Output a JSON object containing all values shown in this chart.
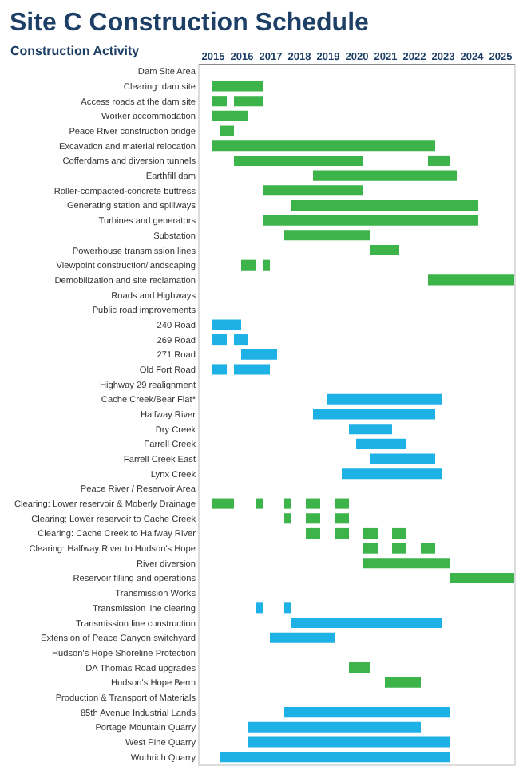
{
  "chart_data": {
    "type": "bar",
    "orientation": "horizontal",
    "title": "Site C Construction Schedule",
    "ylabel": "Construction Activity",
    "categories": [
      "Dam Site Area",
      "Clearing: dam site",
      "Access roads at the dam site",
      "Worker accommodation",
      "Peace River construction bridge",
      "Excavation and material relocation",
      "Cofferdams and diversion tunnels",
      "Earthfill dam",
      "Roller-compacted-concrete buttress",
      "Generating station and spillways",
      "Turbines and generators",
      "Substation",
      "Powerhouse transmission lines",
      "Viewpoint construction/landscaping",
      "Demobilization and site reclamation",
      "Roads and Highways",
      "Public road improvements",
      "240 Road",
      "269 Road",
      "271 Road",
      "Old Fort Road",
      "Highway 29 realignment",
      "Cache Creek/Bear Flat*",
      "Halfway River",
      "Dry Creek",
      "Farrell Creek",
      "Farrell Creek East",
      "Lynx Creek",
      "Peace River / Reservoir Area",
      "Clearing: Lower reservoir & Moberly Drainage",
      "Clearing: Lower reservoir to Cache Creek",
      "Clearing: Cache Creek to Halfway River",
      "Clearing: Halfway River to Hudson's Hope",
      "River diversion",
      "Reservoir filling and operations",
      "Transmission Works",
      "Transmission line clearing",
      "Transmission line construction",
      "Extension of Peace Canyon switchyard",
      "Hudson's Hope Shoreline Protection",
      "DA Thomas Road upgrades",
      "Hudson's Hope Berm",
      "Production & Transport of Materials",
      "85th Avenue Industrial Lands",
      "Portage Mountain Quarry",
      "West Pine Quarry",
      "Wuthrich Quarry"
    ],
    "xlim": [
      2015,
      2026
    ],
    "xticks": [
      {
        "value": 2015.5,
        "label": "2015"
      },
      {
        "value": 2016.5,
        "label": "2016"
      },
      {
        "value": 2017.5,
        "label": "2017"
      },
      {
        "value": 2018.5,
        "label": "2018"
      },
      {
        "value": 2019.5,
        "label": "2019"
      },
      {
        "value": 2020.5,
        "label": "2020"
      },
      {
        "value": 2021.5,
        "label": "2021"
      },
      {
        "value": 2022.5,
        "label": "2022"
      },
      {
        "value": 2023.5,
        "label": "2023"
      },
      {
        "value": 2024.5,
        "label": "2024"
      },
      {
        "value": 2025.5,
        "label": "2025"
      }
    ],
    "series": [
      {
        "base": [
          null,
          2015.5,
          2015.5,
          2015.5,
          2015.75,
          2015.5,
          2016.25,
          2019.0,
          2017.25,
          2018.25,
          2017.25,
          2018.0,
          2021.0,
          2016.5,
          2023.0,
          null,
          null,
          2015.5,
          2015.5,
          2016.5,
          2015.5,
          null,
          2019.5,
          2019.0,
          2020.25,
          2020.5,
          2021.0,
          2020.0,
          null,
          2015.5,
          2018.0,
          2018.75,
          2020.75,
          2020.75,
          2023.75,
          null,
          2017.0,
          2018.25,
          2017.5,
          null,
          2020.25,
          2021.5,
          null,
          2018.0,
          2016.75,
          2016.75,
          2015.75
        ],
        "values": [
          null,
          1.75,
          0.5,
          1.25,
          0.5,
          7.75,
          4.5,
          5.0,
          3.5,
          6.5,
          7.5,
          3.0,
          1.0,
          0.5,
          3.0,
          null,
          null,
          1.0,
          0.5,
          1.25,
          0.5,
          null,
          4.0,
          4.25,
          1.5,
          1.75,
          2.25,
          3.5,
          null,
          0.75,
          0.25,
          0.5,
          0.5,
          3.0,
          2.25,
          null,
          0.25,
          5.25,
          2.25,
          null,
          0.75,
          1.25,
          null,
          5.75,
          6.0,
          7.0,
          8.0
        ],
        "colors": [
          null,
          "#3cb44a",
          "#3cb44a",
          "#3cb44a",
          "#3cb44a",
          "#3cb44a",
          "#3cb44a",
          "#3cb44a",
          "#3cb44a",
          "#3cb44a",
          "#3cb44a",
          "#3cb44a",
          "#3cb44a",
          "#3cb44a",
          "#3cb44a",
          null,
          null,
          "#1eb1e5",
          "#1eb1e5",
          "#1eb1e5",
          "#1eb1e5",
          null,
          "#1eb1e5",
          "#1eb1e5",
          "#1eb1e5",
          "#1eb1e5",
          "#1eb1e5",
          "#1eb1e5",
          null,
          "#3cb44a",
          "#3cb44a",
          "#3cb44a",
          "#3cb44a",
          "#3cb44a",
          "#3cb44a",
          null,
          "#1eb1e5",
          "#1eb1e5",
          "#1eb1e5",
          null,
          "#3cb44a",
          "#3cb44a",
          null,
          "#1eb1e5",
          "#1eb1e5",
          "#1eb1e5",
          "#1eb1e5"
        ]
      },
      {
        "base": [
          null,
          null,
          2016.25,
          null,
          null,
          null,
          2023.0,
          null,
          null,
          null,
          null,
          null,
          null,
          2017.25,
          null,
          null,
          null,
          null,
          2016.25,
          null,
          2016.25,
          null,
          null,
          null,
          null,
          null,
          null,
          null,
          null,
          2017.0,
          2018.75,
          2019.75,
          2021.75,
          null,
          null,
          null,
          2018.0,
          null,
          null,
          null,
          null,
          null,
          null,
          null,
          null,
          null,
          null
        ],
        "values": [
          null,
          null,
          1.0,
          null,
          null,
          null,
          0.75,
          null,
          null,
          null,
          null,
          null,
          null,
          0.25,
          null,
          null,
          null,
          null,
          0.5,
          null,
          1.25,
          null,
          null,
          null,
          null,
          null,
          null,
          null,
          null,
          0.25,
          0.5,
          0.5,
          0.5,
          null,
          null,
          null,
          0.25,
          null,
          null,
          null,
          null,
          null,
          null,
          null,
          null,
          null,
          null
        ],
        "colors": [
          null,
          "#3cb44a",
          "#3cb44a",
          "#3cb44a",
          "#3cb44a",
          "#3cb44a",
          "#3cb44a",
          "#3cb44a",
          "#3cb44a",
          "#3cb44a",
          "#3cb44a",
          "#3cb44a",
          "#3cb44a",
          "#3cb44a",
          "#3cb44a",
          null,
          null,
          "#1eb1e5",
          "#1eb1e5",
          "#1eb1e5",
          "#1eb1e5",
          null,
          "#1eb1e5",
          "#1eb1e5",
          "#1eb1e5",
          "#1eb1e5",
          "#1eb1e5",
          "#1eb1e5",
          null,
          "#3cb44a",
          "#3cb44a",
          "#3cb44a",
          "#3cb44a",
          "#3cb44a",
          "#3cb44a",
          null,
          "#1eb1e5",
          "#1eb1e5",
          "#1eb1e5",
          null,
          "#3cb44a",
          "#3cb44a",
          null,
          "#1eb1e5",
          "#1eb1e5",
          "#1eb1e5",
          "#1eb1e5"
        ]
      },
      {
        "base": [
          null,
          null,
          null,
          null,
          null,
          null,
          null,
          null,
          null,
          null,
          null,
          null,
          null,
          null,
          null,
          null,
          null,
          null,
          null,
          null,
          null,
          null,
          null,
          null,
          null,
          null,
          null,
          null,
          null,
          2018.0,
          2019.75,
          2020.75,
          2022.75,
          null,
          null,
          null,
          null,
          null,
          null,
          null,
          null,
          null,
          null,
          null,
          null,
          null,
          null
        ],
        "values": [
          null,
          null,
          null,
          null,
          null,
          null,
          null,
          null,
          null,
          null,
          null,
          null,
          null,
          null,
          null,
          null,
          null,
          null,
          null,
          null,
          null,
          null,
          null,
          null,
          null,
          null,
          null,
          null,
          null,
          0.25,
          0.5,
          0.5,
          0.5,
          null,
          null,
          null,
          null,
          null,
          null,
          null,
          null,
          null,
          null,
          null,
          null,
          null,
          null
        ],
        "colors": [
          null,
          "#3cb44a",
          "#3cb44a",
          "#3cb44a",
          "#3cb44a",
          "#3cb44a",
          "#3cb44a",
          "#3cb44a",
          "#3cb44a",
          "#3cb44a",
          "#3cb44a",
          "#3cb44a",
          "#3cb44a",
          "#3cb44a",
          "#3cb44a",
          null,
          null,
          "#1eb1e5",
          "#1eb1e5",
          "#1eb1e5",
          "#1eb1e5",
          null,
          "#1eb1e5",
          "#1eb1e5",
          "#1eb1e5",
          "#1eb1e5",
          "#1eb1e5",
          "#1eb1e5",
          null,
          "#3cb44a",
          "#3cb44a",
          "#3cb44a",
          "#3cb44a",
          "#3cb44a",
          "#3cb44a",
          null,
          "#1eb1e5",
          "#1eb1e5",
          "#1eb1e5",
          null,
          "#3cb44a",
          "#3cb44a",
          null,
          "#1eb1e5",
          "#1eb1e5",
          "#1eb1e5",
          "#1eb1e5"
        ]
      },
      {
        "base": [
          null,
          null,
          null,
          null,
          null,
          null,
          null,
          null,
          null,
          null,
          null,
          null,
          null,
          null,
          null,
          null,
          null,
          null,
          null,
          null,
          null,
          null,
          null,
          null,
          null,
          null,
          null,
          null,
          null,
          2018.75,
          null,
          2021.75,
          null,
          null,
          null,
          null,
          null,
          null,
          null,
          null,
          null,
          null,
          null,
          null,
          null,
          null,
          null
        ],
        "values": [
          null,
          null,
          null,
          null,
          null,
          null,
          null,
          null,
          null,
          null,
          null,
          null,
          null,
          null,
          null,
          null,
          null,
          null,
          null,
          null,
          null,
          null,
          null,
          null,
          null,
          null,
          null,
          null,
          null,
          0.5,
          null,
          0.5,
          null,
          null,
          null,
          null,
          null,
          null,
          null,
          null,
          null,
          null,
          null,
          null,
          null,
          null,
          null
        ],
        "colors": [
          null,
          "#3cb44a",
          "#3cb44a",
          "#3cb44a",
          "#3cb44a",
          "#3cb44a",
          "#3cb44a",
          "#3cb44a",
          "#3cb44a",
          "#3cb44a",
          "#3cb44a",
          "#3cb44a",
          "#3cb44a",
          "#3cb44a",
          "#3cb44a",
          null,
          null,
          "#1eb1e5",
          "#1eb1e5",
          "#1eb1e5",
          "#1eb1e5",
          null,
          "#1eb1e5",
          "#1eb1e5",
          "#1eb1e5",
          "#1eb1e5",
          "#1eb1e5",
          "#1eb1e5",
          null,
          "#3cb44a",
          "#3cb44a",
          "#3cb44a",
          "#3cb44a",
          "#3cb44a",
          "#3cb44a",
          null,
          "#1eb1e5",
          "#1eb1e5",
          "#1eb1e5",
          null,
          "#3cb44a",
          "#3cb44a",
          null,
          "#1eb1e5",
          "#1eb1e5",
          "#1eb1e5",
          "#1eb1e5"
        ]
      },
      {
        "base": [
          null,
          null,
          null,
          null,
          null,
          null,
          null,
          null,
          null,
          null,
          null,
          null,
          null,
          null,
          null,
          null,
          null,
          null,
          null,
          null,
          null,
          null,
          null,
          null,
          null,
          null,
          null,
          null,
          null,
          2019.75,
          null,
          null,
          null,
          null,
          null,
          null,
          null,
          null,
          null,
          null,
          null,
          null,
          null,
          null,
          null,
          null,
          null
        ],
        "values": [
          null,
          null,
          null,
          null,
          null,
          null,
          null,
          null,
          null,
          null,
          null,
          null,
          null,
          null,
          null,
          null,
          null,
          null,
          null,
          null,
          null,
          null,
          null,
          null,
          null,
          null,
          null,
          null,
          null,
          0.5,
          null,
          null,
          null,
          null,
          null,
          null,
          null,
          null,
          null,
          null,
          null,
          null,
          null,
          null,
          null,
          null,
          null
        ],
        "colors": [
          null,
          "#3cb44a",
          "#3cb44a",
          "#3cb44a",
          "#3cb44a",
          "#3cb44a",
          "#3cb44a",
          "#3cb44a",
          "#3cb44a",
          "#3cb44a",
          "#3cb44a",
          "#3cb44a",
          "#3cb44a",
          "#3cb44a",
          "#3cb44a",
          null,
          null,
          "#1eb1e5",
          "#1eb1e5",
          "#1eb1e5",
          "#1eb1e5",
          null,
          "#1eb1e5",
          "#1eb1e5",
          "#1eb1e5",
          "#1eb1e5",
          "#1eb1e5",
          "#1eb1e5",
          null,
          "#3cb44a",
          "#3cb44a",
          "#3cb44a",
          "#3cb44a",
          "#3cb44a",
          "#3cb44a",
          null,
          "#1eb1e5",
          "#1eb1e5",
          "#1eb1e5",
          null,
          "#3cb44a",
          "#3cb44a",
          null,
          "#1eb1e5",
          "#1eb1e5",
          "#1eb1e5",
          "#1eb1e5"
        ]
      }
    ]
  }
}
